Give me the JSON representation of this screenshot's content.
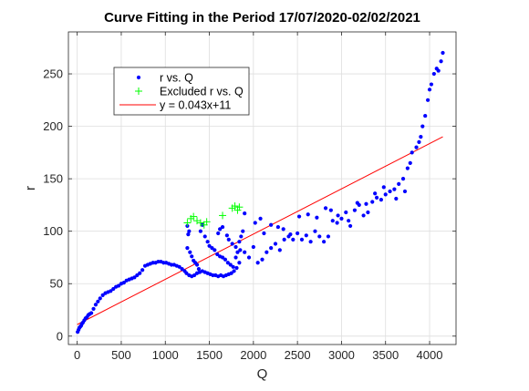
{
  "chart_data": {
    "type": "scatter",
    "title": "Curve Fitting in the Period 17/07/2020-02/02/2021",
    "xlabel": "Q",
    "ylabel": "r",
    "xlim": [
      -100,
      4300
    ],
    "ylim": [
      -8,
      290
    ],
    "xticks": [
      0,
      500,
      1000,
      1500,
      2000,
      2500,
      3000,
      3500,
      4000
    ],
    "yticks": [
      0,
      50,
      100,
      150,
      200,
      250
    ],
    "grid": true,
    "legend_position": "top-left",
    "legend": [
      "r vs. Q",
      "Excluded r vs. Q",
      "y = 0.043x+11"
    ],
    "colors": {
      "included": "#0000ff",
      "excluded": "#00ff00",
      "fit": "#ff0000"
    },
    "series": [
      {
        "name": "r vs. Q",
        "marker": "dot",
        "points": [
          [
            5,
            4
          ],
          [
            15,
            6
          ],
          [
            25,
            8
          ],
          [
            35,
            9
          ],
          [
            45,
            10
          ],
          [
            55,
            12
          ],
          [
            65,
            13
          ],
          [
            80,
            15
          ],
          [
            95,
            17
          ],
          [
            110,
            18
          ],
          [
            125,
            20
          ],
          [
            140,
            21
          ],
          [
            160,
            22
          ],
          [
            185,
            26
          ],
          [
            210,
            30
          ],
          [
            235,
            33
          ],
          [
            260,
            36
          ],
          [
            290,
            39
          ],
          [
            320,
            41
          ],
          [
            350,
            42
          ],
          [
            380,
            43
          ],
          [
            410,
            45
          ],
          [
            440,
            47
          ],
          [
            470,
            48
          ],
          [
            500,
            50
          ],
          [
            530,
            51
          ],
          [
            560,
            53
          ],
          [
            590,
            54
          ],
          [
            620,
            55
          ],
          [
            650,
            56
          ],
          [
            680,
            58
          ],
          [
            710,
            60
          ],
          [
            740,
            63
          ],
          [
            770,
            67
          ],
          [
            800,
            68
          ],
          [
            830,
            69
          ],
          [
            860,
            70
          ],
          [
            890,
            70
          ],
          [
            920,
            71
          ],
          [
            950,
            71
          ],
          [
            980,
            70
          ],
          [
            1010,
            70
          ],
          [
            1040,
            69
          ],
          [
            1070,
            68
          ],
          [
            1100,
            68
          ],
          [
            1130,
            67
          ],
          [
            1160,
            66
          ],
          [
            1190,
            64
          ],
          [
            1220,
            62
          ],
          [
            1240,
            60
          ],
          [
            1270,
            58
          ],
          [
            1300,
            57
          ],
          [
            1330,
            58
          ],
          [
            1360,
            60
          ],
          [
            1390,
            61
          ],
          [
            1420,
            62
          ],
          [
            1450,
            61
          ],
          [
            1480,
            60
          ],
          [
            1510,
            59
          ],
          [
            1540,
            58
          ],
          [
            1570,
            58
          ],
          [
            1600,
            57
          ],
          [
            1630,
            58
          ],
          [
            1660,
            57
          ],
          [
            1690,
            58
          ],
          [
            1720,
            59
          ],
          [
            1750,
            60
          ],
          [
            1780,
            62
          ],
          [
            1810,
            65
          ],
          [
            1840,
            70
          ],
          [
            1250,
            105
          ],
          [
            1270,
            100
          ],
          [
            1260,
            97
          ],
          [
            1250,
            84
          ],
          [
            1280,
            80
          ],
          [
            1300,
            76
          ],
          [
            1320,
            72
          ],
          [
            1340,
            70
          ],
          [
            1360,
            68
          ],
          [
            1380,
            64
          ],
          [
            1400,
            100
          ],
          [
            1420,
            106
          ],
          [
            1450,
            95
          ],
          [
            1480,
            90
          ],
          [
            1500,
            86
          ],
          [
            1530,
            84
          ],
          [
            1560,
            82
          ],
          [
            1590,
            78
          ],
          [
            1620,
            76
          ],
          [
            1650,
            75
          ],
          [
            1680,
            73
          ],
          [
            1710,
            70
          ],
          [
            1740,
            68
          ],
          [
            1770,
            66
          ],
          [
            1800,
            75
          ],
          [
            1820,
            80
          ],
          [
            1840,
            90
          ],
          [
            1860,
            95
          ],
          [
            1880,
            100
          ],
          [
            1900,
            117
          ],
          [
            1600,
            98
          ],
          [
            1620,
            102
          ],
          [
            1650,
            104
          ],
          [
            1700,
            96
          ],
          [
            1720,
            92
          ],
          [
            1760,
            88
          ],
          [
            1800,
            85
          ],
          [
            1850,
            82
          ],
          [
            1900,
            80
          ],
          [
            1950,
            75
          ],
          [
            2000,
            85
          ],
          [
            2050,
            70
          ],
          [
            2100,
            73
          ],
          [
            2150,
            80
          ],
          [
            2200,
            84
          ],
          [
            2250,
            88
          ],
          [
            2300,
            82
          ],
          [
            2350,
            92
          ],
          [
            2400,
            95
          ],
          [
            2450,
            92
          ],
          [
            2500,
            98
          ],
          [
            2550,
            92
          ],
          [
            2600,
            96
          ],
          [
            2650,
            90
          ],
          [
            2700,
            100
          ],
          [
            2750,
            95
          ],
          [
            2800,
            90
          ],
          [
            2850,
            95
          ],
          [
            2900,
            110
          ],
          [
            2950,
            108
          ],
          [
            3000,
            112
          ],
          [
            3050,
            118
          ],
          [
            3100,
            105
          ],
          [
            3150,
            120
          ],
          [
            3200,
            125
          ],
          [
            3250,
            115
          ],
          [
            3300,
            118
          ],
          [
            3350,
            128
          ],
          [
            3400,
            132
          ],
          [
            3450,
            130
          ],
          [
            3500,
            135
          ],
          [
            3550,
            138
          ],
          [
            3600,
            140
          ],
          [
            3650,
            145
          ],
          [
            3700,
            150
          ],
          [
            3750,
            160
          ],
          [
            3780,
            165
          ],
          [
            3800,
            175
          ],
          [
            3850,
            180
          ],
          [
            3880,
            185
          ],
          [
            3900,
            190
          ],
          [
            3920,
            200
          ],
          [
            3950,
            210
          ],
          [
            3980,
            225
          ],
          [
            4000,
            235
          ],
          [
            4020,
            240
          ],
          [
            4050,
            250
          ],
          [
            4080,
            255
          ],
          [
            4100,
            253
          ],
          [
            4130,
            262
          ],
          [
            4150,
            270
          ],
          [
            2020,
            108
          ],
          [
            2080,
            112
          ],
          [
            2120,
            98
          ],
          [
            2200,
            106
          ],
          [
            2280,
            104
          ],
          [
            2340,
            102
          ],
          [
            2420,
            97
          ],
          [
            2520,
            114
          ],
          [
            2620,
            116
          ],
          [
            2720,
            113
          ],
          [
            2820,
            122
          ],
          [
            2880,
            120
          ],
          [
            2960,
            115
          ],
          [
            3080,
            110
          ],
          [
            3180,
            127
          ],
          [
            3280,
            126
          ],
          [
            3380,
            136
          ],
          [
            3480,
            142
          ],
          [
            3620,
            131
          ],
          [
            3720,
            138
          ]
        ]
      },
      {
        "name": "Excluded r vs. Q",
        "marker": "plus",
        "points": [
          [
            1250,
            108
          ],
          [
            1290,
            112
          ],
          [
            1320,
            114
          ],
          [
            1360,
            110
          ],
          [
            1400,
            108
          ],
          [
            1440,
            106
          ],
          [
            1470,
            109
          ],
          [
            1650,
            115
          ],
          [
            1760,
            122
          ],
          [
            1790,
            124
          ],
          [
            1820,
            120
          ],
          [
            1840,
            123
          ]
        ]
      },
      {
        "name": "y = 0.043x+11",
        "marker": "line",
        "points": [
          [
            0,
            11
          ],
          [
            4150,
            190
          ]
        ]
      }
    ]
  }
}
